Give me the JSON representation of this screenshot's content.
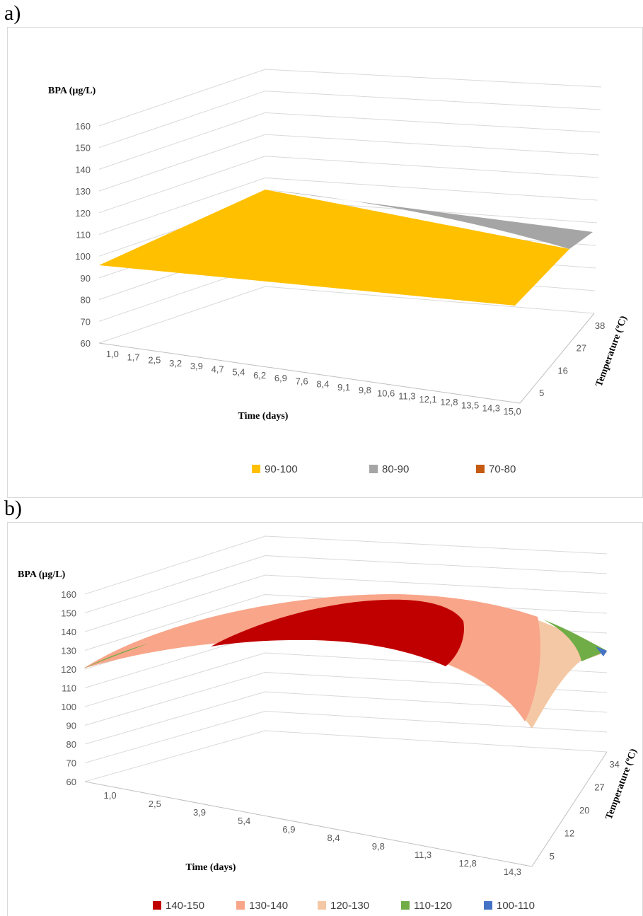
{
  "chart_data": [
    {
      "panel": "a)",
      "type": "surface",
      "zlabel": "BPA (µg/L)",
      "xlabel": "Time (days)",
      "ylabel": "Temperature (ºC)",
      "z_ticks": [
        "60",
        "70",
        "80",
        "90",
        "100",
        "110",
        "120",
        "130",
        "140",
        "150",
        "160"
      ],
      "x_ticks": [
        "1,0",
        "1,7",
        "2,5",
        "3,2",
        "3,9",
        "4,7",
        "5,4",
        "6,2",
        "6,9",
        "7,6",
        "8,4",
        "9,1",
        "9,8",
        "10,6",
        "11,3",
        "12,1",
        "12,8",
        "13,5",
        "14,3",
        "15,0"
      ],
      "y_ticks": [
        "5",
        "16",
        "27",
        "38"
      ],
      "zlim": [
        60,
        160
      ],
      "xlim": [
        1.0,
        15.0
      ],
      "ylim": [
        5,
        38
      ],
      "corner_values": {
        "t1_T5": 96,
        "t15_T5": 92,
        "t1_T38": 97,
        "t15_T38": 89
      },
      "legend": [
        {
          "label": "90-100",
          "color": "#ffc000"
        },
        {
          "label": "80-90",
          "color": "#a5a5a5"
        },
        {
          "label": "70-80",
          "color": "#c55a11"
        }
      ]
    },
    {
      "panel": "b)",
      "type": "surface",
      "zlabel": "BPA (µg/L)",
      "xlabel": "Time (days)",
      "ylabel": "Temperature (ºC)",
      "z_ticks": [
        "60",
        "70",
        "80",
        "90",
        "100",
        "110",
        "120",
        "130",
        "140",
        "150",
        "160"
      ],
      "x_ticks": [
        "1,0",
        "2,5",
        "3,9",
        "5,4",
        "6,9",
        "8,4",
        "9,8",
        "11,3",
        "12,8",
        "14,3"
      ],
      "y_ticks": [
        "5",
        "12",
        "20",
        "27",
        "34"
      ],
      "zlim": [
        60,
        160
      ],
      "xlim": [
        1.0,
        14.3
      ],
      "ylim": [
        5,
        34
      ],
      "peak_value": 147,
      "legend": [
        {
          "label": "140-150",
          "color": "#c00000"
        },
        {
          "label": "130-140",
          "color": "#f8a58a"
        },
        {
          "label": "120-130",
          "color": "#f4c8a4"
        },
        {
          "label": "110-120",
          "color": "#70ad47"
        },
        {
          "label": "100-110",
          "color": "#4472c4"
        }
      ]
    }
  ]
}
